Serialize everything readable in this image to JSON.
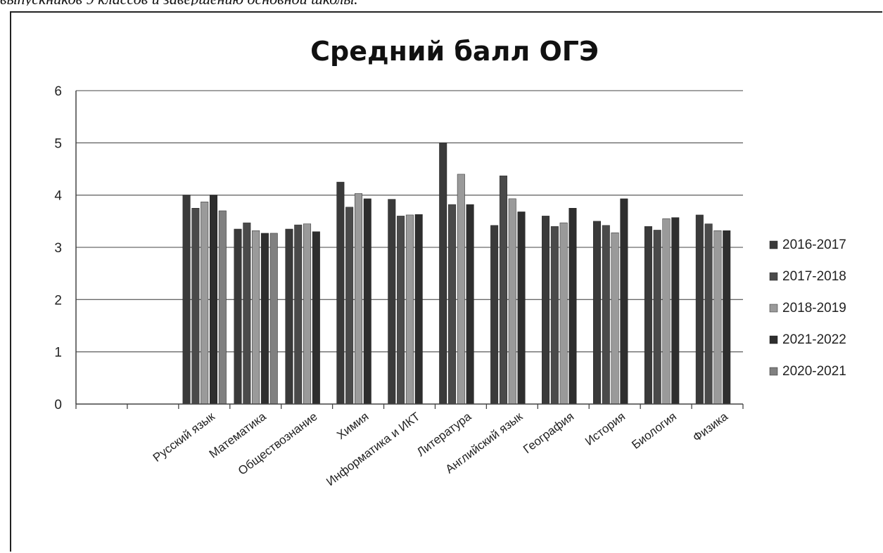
{
  "caption": "выпускников 9 классов и завершению основной школы.",
  "chart_data": {
    "type": "bar",
    "title": "Средний балл ОГЭ",
    "xlabel": "",
    "ylabel": "",
    "ylim": [
      0,
      6
    ],
    "yticks": [
      0,
      1,
      2,
      3,
      4,
      5,
      6
    ],
    "grid": true,
    "legend_position": "right",
    "categories": [
      "",
      "",
      "Русский язык",
      "Математика",
      "Обществознание",
      "Химия",
      "Информатика и ИКТ",
      "Литература",
      "Английский язык",
      "География",
      "История",
      "Биология",
      "Физика"
    ],
    "series": [
      {
        "name": "2016-2017",
        "color": "#3a3a3a",
        "values": [
          null,
          null,
          4.0,
          3.35,
          3.35,
          4.25,
          3.92,
          5.0,
          3.42,
          3.6,
          3.5,
          3.4,
          3.62
        ]
      },
      {
        "name": "2017-2018",
        "color": "#4a4a4a",
        "values": [
          null,
          null,
          3.75,
          3.47,
          3.43,
          3.77,
          3.6,
          3.82,
          4.37,
          3.4,
          3.42,
          3.33,
          3.45
        ]
      },
      {
        "name": "2018-2019",
        "color": "#9a9a9a",
        "values": [
          null,
          null,
          3.87,
          3.32,
          3.45,
          4.03,
          3.62,
          4.4,
          3.93,
          3.47,
          3.28,
          3.55,
          3.32
        ]
      },
      {
        "name": "2021-2022",
        "color": "#2e2e2e",
        "values": [
          null,
          null,
          4.0,
          3.27,
          3.3,
          3.93,
          3.63,
          3.82,
          3.68,
          3.75,
          3.93,
          3.57,
          3.32
        ]
      },
      {
        "name": "2020-2021",
        "color": "#808080",
        "values": [
          null,
          null,
          3.7,
          3.27,
          null,
          null,
          null,
          null,
          null,
          null,
          null,
          null,
          null
        ]
      }
    ]
  }
}
